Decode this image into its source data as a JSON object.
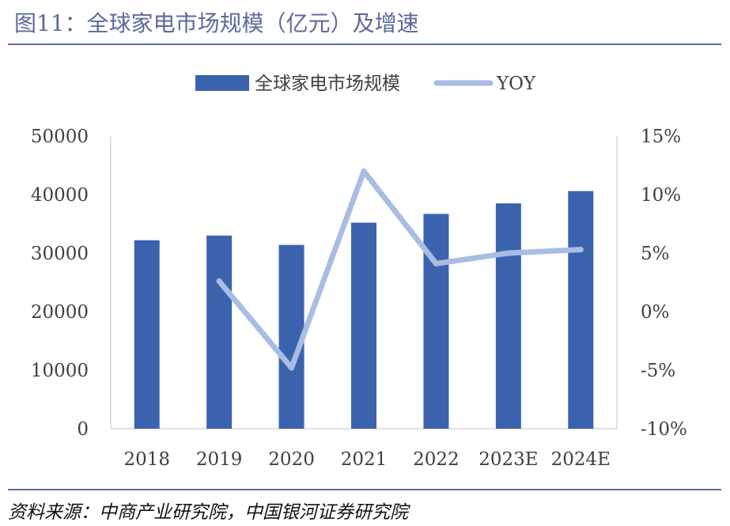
{
  "figure": {
    "title": "图11：全球家电市场规模（亿元）及增速",
    "source": "资料来源：中商产业研究院，中国银河证券研究院"
  },
  "colors": {
    "bar": "#3b63ad",
    "line": "#a9bde4",
    "title": "#5a6b99",
    "axis": "#d9d9d9",
    "text": "#404040"
  },
  "chart_data": {
    "type": "bar",
    "categories": [
      "2018",
      "2019",
      "2020",
      "2021",
      "2022",
      "2023E",
      "2024E"
    ],
    "series": [
      {
        "name": "全球家电市场规模",
        "type": "bar",
        "axis": "left",
        "values": [
          32200,
          33000,
          31400,
          35200,
          36700,
          38500,
          40600
        ]
      },
      {
        "name": "YOY",
        "type": "line",
        "axis": "right",
        "values": [
          null,
          2.6,
          -4.8,
          12.0,
          4.1,
          5.0,
          5.3
        ]
      }
    ],
    "y_left": {
      "min": 0,
      "max": 50000,
      "ticks": [
        "0",
        "10000",
        "20000",
        "30000",
        "40000",
        "50000"
      ]
    },
    "y_right": {
      "min": -10,
      "max": 15,
      "ticks": [
        "-10%",
        "-5%",
        "0%",
        "5%",
        "10%",
        "15%"
      ]
    },
    "legend": {
      "position": "top",
      "entries": [
        "全球家电市场规模",
        "YOY"
      ]
    },
    "grid": false,
    "xlabel": "",
    "ylabel": ""
  }
}
